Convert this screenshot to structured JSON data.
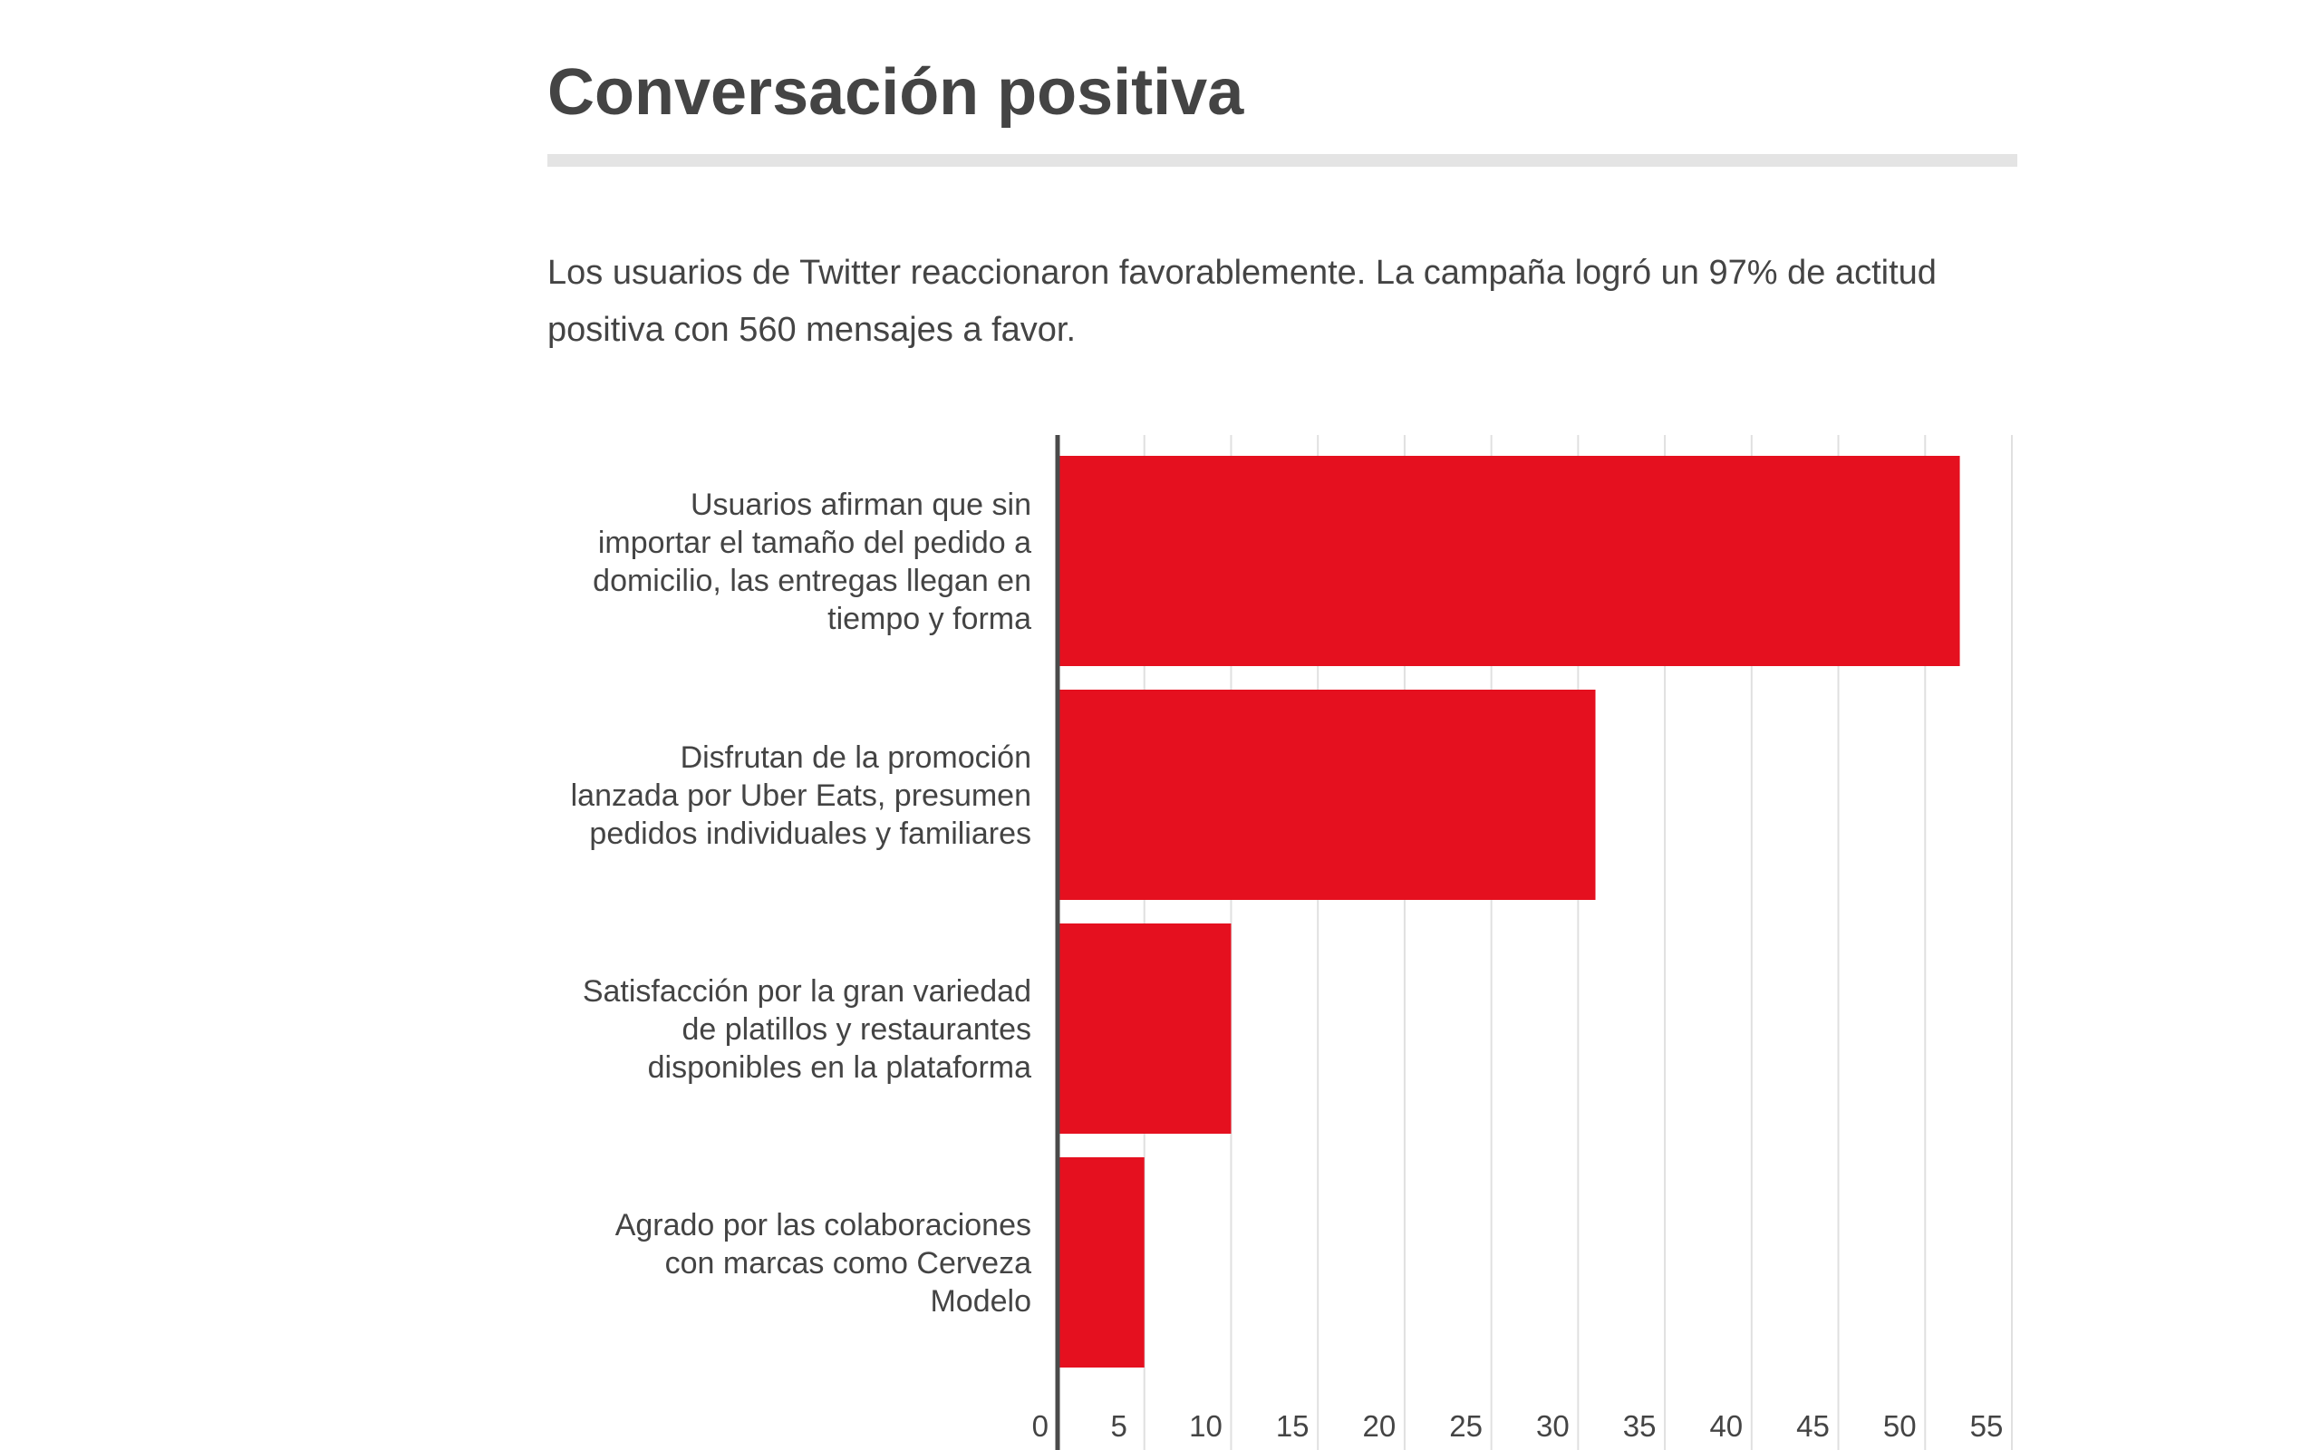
{
  "title": "Conversación positiva",
  "description": "Los usuarios de Twitter reaccionaron favorablemente. La campaña logró un 97% de actitud positiva con 560 mensajes a favor.",
  "colors": {
    "bar": "#e5101f",
    "text": "#444444",
    "grid": "#e0e0e0",
    "rule": "#e4e4e4"
  },
  "chart_data": {
    "type": "bar",
    "orientation": "horizontal",
    "categories": [
      [
        "Usuarios afirman que sin",
        "importar el tamaño del pedido a",
        "domicilio, las entregas llegan en",
        "tiempo y forma"
      ],
      [
        "Disfrutan de la promoción",
        "lanzada por Uber Eats, presumen",
        "pedidos individuales y familiares"
      ],
      [
        "Satisfacción por la gran variedad",
        "de platillos y restaurantes",
        "disponibles en la plataforma"
      ],
      [
        "Agrado por las colaboraciones",
        "con marcas como Cerveza",
        "Modelo"
      ]
    ],
    "values": [
      52,
      31,
      10,
      5
    ],
    "xlim": [
      0,
      55
    ],
    "xticks": [
      0,
      5,
      10,
      15,
      20,
      25,
      30,
      35,
      40,
      45,
      50,
      55
    ],
    "grid": true,
    "legend": "none"
  }
}
